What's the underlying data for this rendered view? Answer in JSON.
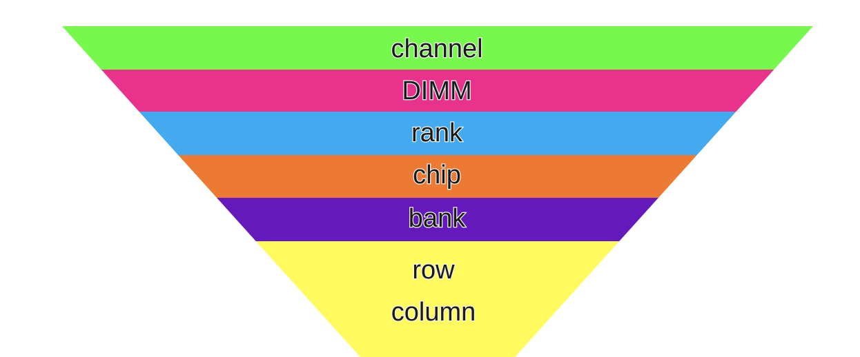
{
  "funnel": {
    "layers": [
      {
        "label": "channel",
        "color": "#76f94c"
      },
      {
        "label": "DIMM",
        "color": "#e9328b"
      },
      {
        "label": "rank",
        "color": "#43aaf0"
      },
      {
        "label": "chip",
        "color": "#ed7a33"
      },
      {
        "label": "bank",
        "color": "#6419bb"
      }
    ],
    "bottom": {
      "lines": [
        "row",
        "column"
      ],
      "color": "#fffb5e"
    }
  }
}
